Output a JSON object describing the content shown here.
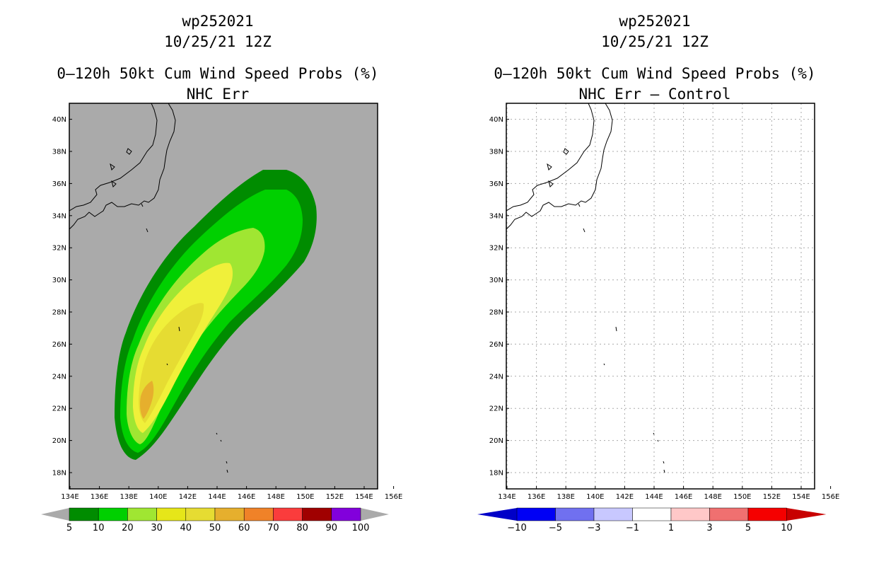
{
  "left": {
    "storm_id": "wp252021",
    "date": "10/25/21 12Z",
    "product": "0–120h 50kt Cum Wind Speed Probs (%)",
    "subtitle": "NHC Err",
    "colorbar": {
      "colors": [
        "#008c00",
        "#00d000",
        "#a0e632",
        "#e6e619",
        "#e6dc32",
        "#e6af2d",
        "#f08228",
        "#fa3c3c",
        "#a00000",
        "#8200dc"
      ],
      "labels": [
        "5",
        "10",
        "20",
        "30",
        "40",
        "50",
        "60",
        "70",
        "80",
        "90",
        "100"
      ]
    }
  },
  "right": {
    "storm_id": "wp252021",
    "date": "10/25/21 12Z",
    "product": "0–120h 50kt Cum Wind Speed Probs (%)",
    "subtitle": "NHC Err – Control",
    "colorbar": {
      "colors": [
        "#0000c8",
        "#0000f5",
        "#7070f0",
        "#c8c8ff",
        "#ffffff",
        "#ffc8c8",
        "#f07070",
        "#f50000",
        "#c80000"
      ],
      "labels": [
        "−10",
        "−5",
        "−3",
        "−1",
        "1",
        "3",
        "5",
        "10"
      ]
    }
  },
  "map": {
    "lon_labels": [
      "134E",
      "136E",
      "138E",
      "140E",
      "142E",
      "144E",
      "146E",
      "148E",
      "150E",
      "152E",
      "154E",
      "156E"
    ],
    "lat_labels": [
      "18N",
      "20N",
      "22N",
      "24N",
      "26N",
      "28N",
      "30N",
      "32N",
      "34N",
      "36N",
      "38N",
      "40N"
    ]
  }
}
